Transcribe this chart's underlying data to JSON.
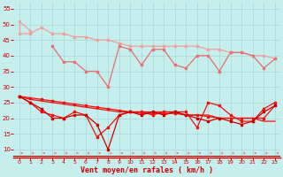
{
  "x": [
    0,
    1,
    2,
    3,
    4,
    5,
    6,
    7,
    8,
    9,
    10,
    11,
    12,
    13,
    14,
    15,
    16,
    17,
    18,
    19,
    20,
    21,
    22,
    23
  ],
  "pink_top": [
    51,
    48,
    null,
    null,
    null,
    null,
    null,
    null,
    null,
    null,
    null,
    null,
    null,
    null,
    null,
    null,
    null,
    null,
    null,
    null,
    null,
    null,
    null,
    null
  ],
  "pink_upper": [
    47,
    47,
    49,
    47,
    47,
    46,
    46,
    45,
    45,
    44,
    43,
    43,
    43,
    43,
    43,
    43,
    43,
    42,
    42,
    41,
    41,
    40,
    40,
    39
  ],
  "pink_lower": [
    null,
    null,
    null,
    43,
    38,
    38,
    35,
    35,
    30,
    43,
    42,
    37,
    42,
    42,
    37,
    36,
    40,
    40,
    35,
    41,
    41,
    40,
    36,
    39
  ],
  "red_smooth": [
    27,
    26.5,
    26.0,
    25.5,
    25.0,
    24.5,
    24.0,
    23.5,
    23.0,
    22.5,
    22.0,
    21.5,
    21.5,
    21.5,
    21.5,
    21.0,
    21.0,
    20.5,
    20.0,
    20.0,
    20.0,
    20.0,
    20.0,
    24
  ],
  "red_jagged1": [
    27,
    25,
    22,
    21,
    20,
    22,
    21,
    14,
    17,
    21,
    22,
    22,
    21,
    22,
    22,
    22,
    17,
    25,
    24,
    21,
    19,
    19,
    23,
    25
  ],
  "red_jagged2": [
    27,
    25,
    23,
    20,
    20,
    21,
    21,
    18,
    10,
    21,
    22,
    21,
    22,
    21,
    22,
    21,
    20,
    19,
    20,
    19,
    18,
    19,
    22,
    24
  ],
  "red_trend": [
    27,
    26,
    25.5,
    25,
    24.5,
    24,
    23.5,
    23,
    22.5,
    22,
    22,
    22,
    22,
    22,
    22,
    21,
    21,
    21,
    20,
    20,
    20,
    20,
    19,
    19
  ],
  "background": "#c5eeed",
  "grid_color": "#a8d8d8",
  "light_pink": "#f0a0a0",
  "medium_pink": "#e87070",
  "bright_red": "#ee1111",
  "dark_red": "#cc0000",
  "xlabel": "Vent moyen/en rafales ( km/h )",
  "yticks": [
    10,
    15,
    20,
    25,
    30,
    35,
    40,
    45,
    50,
    55
  ],
  "ylim": [
    7.5,
    57
  ],
  "xlim": [
    -0.5,
    23.5
  ]
}
